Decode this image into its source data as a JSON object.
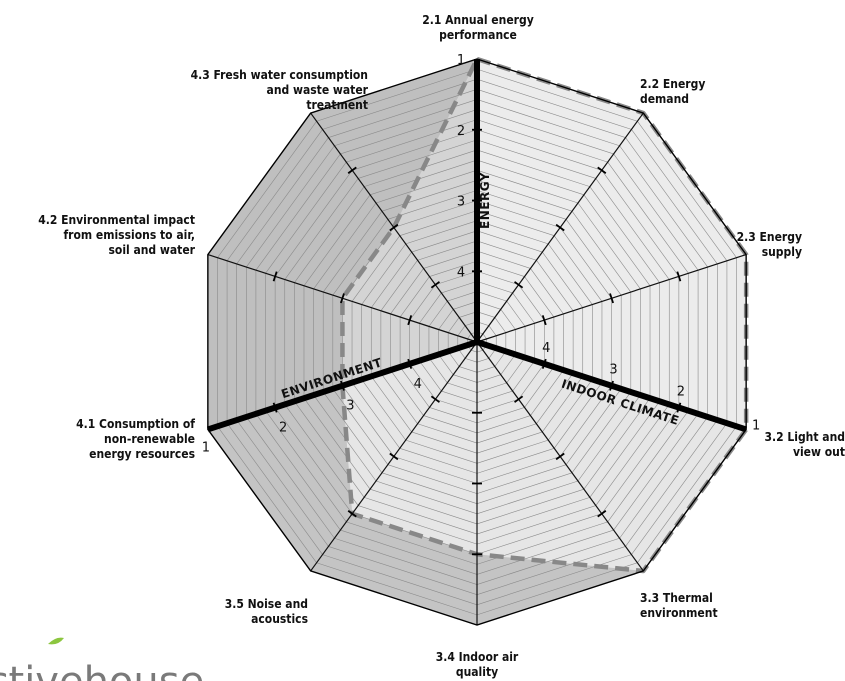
{
  "chart_data": {
    "type": "radar",
    "axes": [
      {
        "id": "2.1",
        "label_lines": [
          "2.1 Annual energy",
          "performance"
        ],
        "value": 1
      },
      {
        "id": "2.2",
        "label_lines": [
          "2.2 Energy",
          "demand"
        ],
        "value": 1
      },
      {
        "id": "2.3",
        "label_lines": [
          "2.3 Energy",
          "supply"
        ],
        "value": 1
      },
      {
        "id": "3.2",
        "label_lines": [
          "3.2 Light and",
          "view out"
        ],
        "value": 1
      },
      {
        "id": "3.3",
        "label_lines": [
          "3.3 Thermal",
          "environment"
        ],
        "value": 1
      },
      {
        "id": "3.4",
        "label_lines": [
          "3.4 Indoor air",
          "quality"
        ],
        "value": 2
      },
      {
        "id": "3.5",
        "label_lines": [
          "3.5 Noise and",
          "acoustics"
        ],
        "value": 2
      },
      {
        "id": "4.1",
        "label_lines": [
          "4.1 Consumption of",
          "non-renewable",
          "energy resources"
        ],
        "value": 3
      },
      {
        "id": "4.2",
        "label_lines": [
          "4.2 Environmental impact",
          "from emissions to air,",
          "soil and water"
        ],
        "value": 3
      },
      {
        "id": "4.3",
        "label_lines": [
          "4.3 Fresh water consumption",
          "and waste water",
          "treatment"
        ],
        "value": 3
      }
    ],
    "scale": {
      "best": 1,
      "worst": 4,
      "levels": [
        "1",
        "2",
        "3",
        "4"
      ]
    },
    "categories": [
      {
        "name": "ENERGY",
        "axes": [
          "2.1",
          "2.2",
          "2.3"
        ],
        "fill": "#ececec"
      },
      {
        "name": "INDOOR CLIMATE",
        "axes": [
          "3.2",
          "3.3",
          "3.4",
          "3.5"
        ],
        "fill": "#e6e6e6"
      },
      {
        "name": "ENVIRONMENT",
        "axes": [
          "4.1",
          "4.2",
          "4.3"
        ],
        "fill": "#d4d4d4"
      }
    ],
    "series": [
      {
        "style": "dashed",
        "color": "#888888"
      }
    ]
  },
  "logo": {
    "text": "activehouse",
    "color": "#7a7a7a",
    "accent": "#8cc63f"
  }
}
